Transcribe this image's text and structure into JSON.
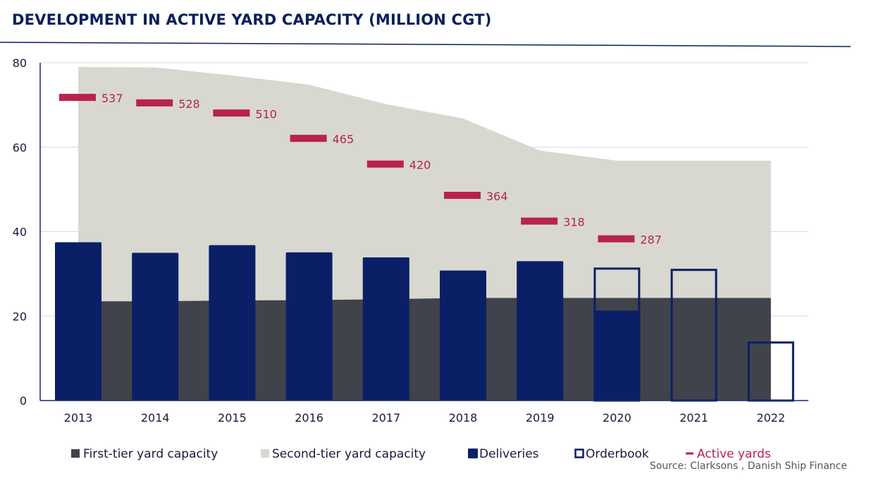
{
  "title": "DEVELOPMENT IN ACTIVE YARD CAPACITY (MILLION CGT)",
  "source": "Source:  Clarksons , Danish Ship Finance",
  "colors": {
    "title": "#0b1f5c",
    "first_tier": "#40434b",
    "second_tier": "#d8d8d0",
    "deliveries": "#0a1f66",
    "orderbook": "#0a1f66",
    "active_yards": "#b8234a",
    "grid": "#d5d8e0",
    "axis": "#1a2a6c"
  },
  "chart_data": {
    "type": "bar",
    "categories": [
      "2013",
      "2014",
      "2015",
      "2016",
      "2017",
      "2018",
      "2019",
      "2020",
      "2021",
      "2022"
    ],
    "ylim": [
      0,
      80
    ],
    "yticks": [
      0,
      20,
      40,
      60,
      80
    ],
    "grid": true,
    "legend_position": "bottom",
    "series": [
      {
        "name": "First-tier yard capacity",
        "kind": "area",
        "values": [
          23.5,
          23.5,
          23.7,
          23.8,
          24.0,
          24.3,
          24.3,
          24.3,
          24.3,
          24.3
        ]
      },
      {
        "name": "Second-tier yard capacity",
        "kind": "area",
        "values": [
          79.0,
          78.9,
          77.0,
          74.8,
          70.2,
          66.8,
          59.2,
          56.8,
          56.8,
          56.8
        ]
      },
      {
        "name": "Deliveries",
        "kind": "bar",
        "values": [
          37.5,
          35.0,
          36.8,
          35.1,
          33.9,
          30.8,
          33.0,
          21.3,
          null,
          null
        ]
      },
      {
        "name": "Orderbook",
        "kind": "bar-outline",
        "values": [
          null,
          null,
          null,
          null,
          null,
          null,
          null,
          31.5,
          31.2,
          14.0
        ]
      },
      {
        "name": "Active yards",
        "kind": "marker",
        "values": [
          537,
          528,
          510,
          465,
          420,
          364,
          318,
          287,
          null,
          null
        ],
        "plot_positions": [
          71.8,
          70.5,
          68.1,
          62.1,
          56.0,
          48.6,
          42.5,
          38.3,
          null,
          null
        ]
      }
    ]
  }
}
